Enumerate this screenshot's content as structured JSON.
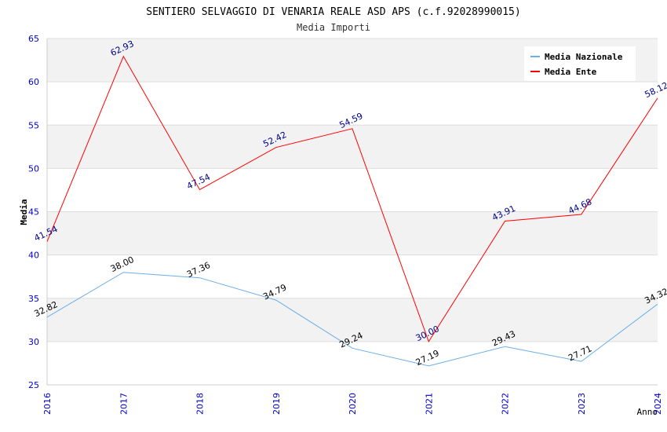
{
  "chart_data": {
    "type": "line",
    "title": "SENTIERO SELVAGGIO DI VENARIA REALE ASD APS (c.f.92028990015)",
    "subtitle": "Media Importi",
    "xlabel": "Anno",
    "ylabel": "Media",
    "x": [
      "2016",
      "2017",
      "2018",
      "2019",
      "2020",
      "2021",
      "2022",
      "2023",
      "2024"
    ],
    "y_ticks": [
      "25",
      "30",
      "35",
      "40",
      "45",
      "50",
      "55",
      "60",
      "65"
    ],
    "ylim": [
      25,
      65
    ],
    "grid": true,
    "legend_position": "top-right",
    "series": [
      {
        "name": "Media Nazionale",
        "color": "#6aaee8",
        "label_color": "#000000",
        "values": [
          32.82,
          38.0,
          37.36,
          34.79,
          29.24,
          27.19,
          29.43,
          27.71,
          34.32
        ],
        "labels": [
          "32.82",
          "38.00",
          "37.36",
          "34.79",
          "29.24",
          "27.19",
          "29.43",
          "27.71",
          "34.32"
        ]
      },
      {
        "name": "Media Ente",
        "color": "#ff0000",
        "label_color": "#00008b",
        "values": [
          41.54,
          62.93,
          47.54,
          52.42,
          54.59,
          30.0,
          43.91,
          44.68,
          58.12
        ],
        "labels": [
          "41.54",
          "62.93",
          "47.54",
          "52.42",
          "54.59",
          "30.00",
          "43.91",
          "44.68",
          "58.12"
        ]
      }
    ]
  }
}
